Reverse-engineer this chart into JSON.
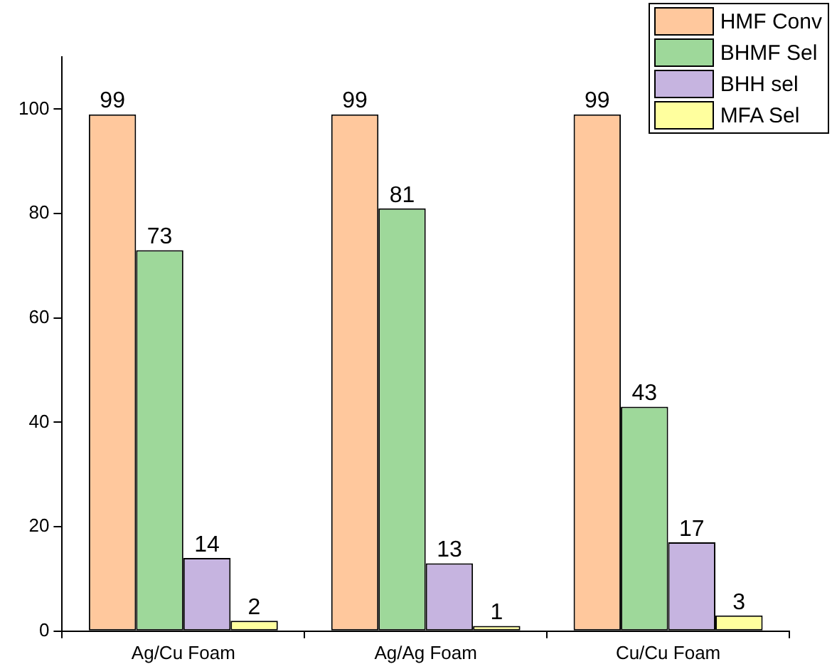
{
  "chart_data": {
    "type": "bar",
    "categories": [
      "Ag/Cu Foam",
      "Ag/Ag Foam",
      "Cu/Cu Foam"
    ],
    "series": [
      {
        "name": "HMF Conv",
        "color": "#ffc89d",
        "values": [
          99,
          99,
          99
        ]
      },
      {
        "name": "BHMF Sel",
        "color": "#9ed89a",
        "values": [
          73,
          81,
          43
        ]
      },
      {
        "name": "BHH sel",
        "color": "#c6b4e0",
        "values": [
          14,
          13,
          17
        ]
      },
      {
        "name": "MFA Sel",
        "color": "#ffff9e",
        "values": [
          2,
          1,
          3
        ]
      }
    ],
    "ylim": [
      0,
      110
    ],
    "yticks": [
      0,
      20,
      40,
      60,
      80,
      100
    ],
    "grid": false,
    "legend": "top right",
    "data_labels": true
  }
}
